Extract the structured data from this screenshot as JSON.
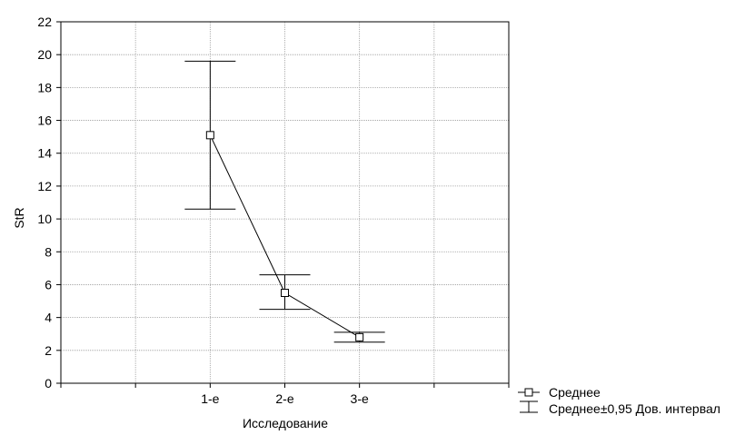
{
  "chart_data": {
    "type": "line",
    "title": "",
    "xlabel": "Исследование",
    "ylabel": "StR",
    "categories": [
      "1-е",
      "2-е",
      "3-е"
    ],
    "x_positions": [
      2,
      3,
      4
    ],
    "xlim": [
      0,
      6
    ],
    "ylim": [
      0,
      22
    ],
    "y_ticks": [
      0,
      2,
      4,
      6,
      8,
      10,
      12,
      14,
      16,
      18,
      20,
      22
    ],
    "grid": true,
    "legend_position": "bottom-right",
    "series": [
      {
        "name": "Среднее",
        "values": [
          15.1,
          5.5,
          2.8
        ],
        "ci_lower": [
          10.6,
          4.5,
          2.5
        ],
        "ci_upper": [
          19.6,
          6.6,
          3.1
        ]
      }
    ],
    "legend": {
      "mean_label": "Среднее",
      "ci_label": "Среднее±0,95 Дов. интервал"
    }
  }
}
